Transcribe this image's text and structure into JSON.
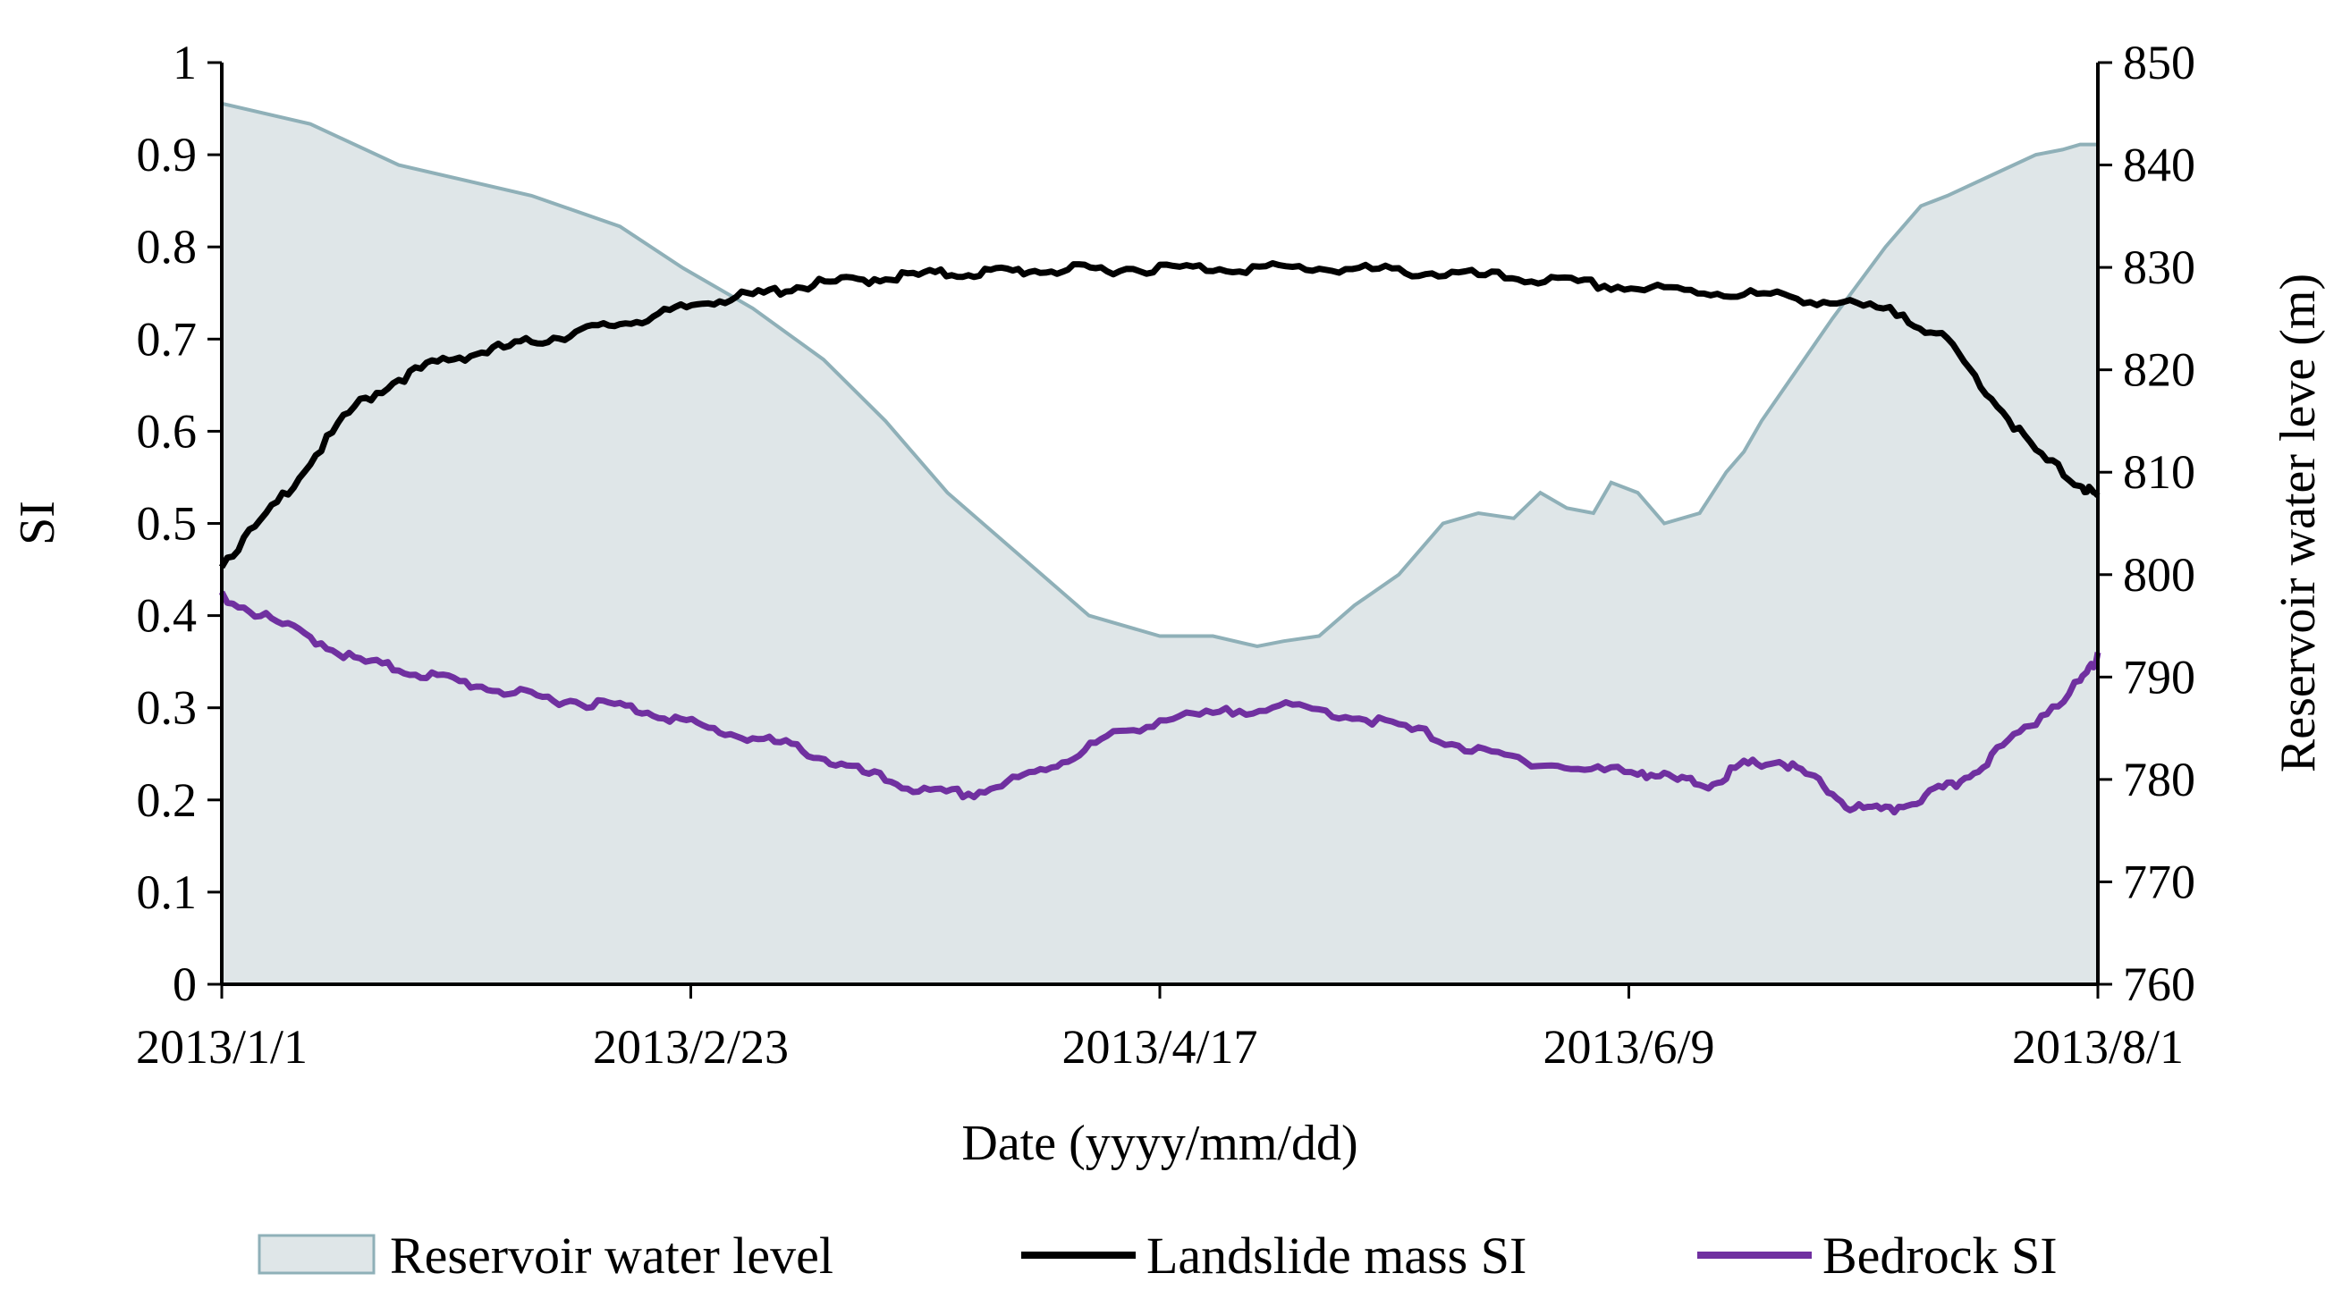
{
  "chart_data": {
    "type": "line",
    "title": "",
    "xlabel": "Date (yyyy/mm/dd)",
    "ylabel": "SI",
    "y2label": "Reservoir water leve (m)",
    "x_tick_labels": [
      "2013/1/1",
      "2013/2/23",
      "2013/4/17",
      "2013/6/9",
      "2013/8/1"
    ],
    "x_tick_days": [
      0,
      53,
      106,
      159,
      212
    ],
    "xlim": [
      0,
      212
    ],
    "ylim": [
      0,
      1
    ],
    "y_ticks": [
      "0",
      "0.1",
      "0.2",
      "0.3",
      "0.4",
      "0.5",
      "0.6",
      "0.7",
      "0.8",
      "0.9",
      "1"
    ],
    "y2lim": [
      760,
      850
    ],
    "y2_ticks": [
      "760",
      "770",
      "780",
      "790",
      "800",
      "810",
      "820",
      "830",
      "840",
      "850"
    ],
    "legend_position": "bottom",
    "series": [
      {
        "name": "Reservoir water level",
        "kind": "area",
        "axis": "right",
        "color": "#dfe6e8",
        "stroke": "#8fb0b8",
        "x": [
          0,
          10,
          20,
          35,
          45,
          52,
          60,
          68,
          75,
          82,
          90,
          98,
          106,
          112,
          117,
          120,
          124,
          128,
          133,
          138,
          142,
          146,
          149,
          152,
          155,
          157,
          160,
          163,
          167,
          170,
          172,
          174,
          178,
          182,
          188,
          190,
          192,
          195,
          200,
          205,
          208,
          210,
          212
        ],
        "values": [
          846,
          844,
          840,
          837,
          834,
          830,
          826,
          821,
          815,
          808,
          802,
          796,
          794,
          794,
          793,
          793.5,
          794,
          797,
          800,
          805,
          806,
          805.5,
          808,
          806.5,
          806,
          809,
          808,
          805,
          806,
          810,
          812,
          815,
          820,
          825,
          832,
          834,
          836,
          837,
          839,
          841,
          841.5,
          842,
          842
        ]
      },
      {
        "name": "Landslide mass SI",
        "kind": "line",
        "axis": "left",
        "color": "#000000",
        "x": [
          0,
          5,
          10,
          15,
          20,
          25,
          30,
          35,
          40,
          45,
          50,
          55,
          60,
          65,
          70,
          75,
          80,
          85,
          90,
          95,
          100,
          106,
          112,
          118,
          124,
          130,
          136,
          142,
          148,
          154,
          160,
          166,
          172,
          178,
          184,
          190,
          195,
          200,
          205,
          210,
          212
        ],
        "values": [
          0.46,
          0.51,
          0.57,
          0.63,
          0.66,
          0.68,
          0.69,
          0.7,
          0.71,
          0.72,
          0.73,
          0.745,
          0.75,
          0.76,
          0.765,
          0.77,
          0.773,
          0.775,
          0.777,
          0.778,
          0.779,
          0.78,
          0.78,
          0.78,
          0.78,
          0.778,
          0.775,
          0.772,
          0.768,
          0.763,
          0.758,
          0.755,
          0.752,
          0.748,
          0.74,
          0.73,
          0.7,
          0.64,
          0.58,
          0.545,
          0.53
        ]
      },
      {
        "name": "Bedrock SI",
        "kind": "line",
        "axis": "left",
        "color": "#7030a0",
        "x": [
          0,
          5,
          10,
          15,
          20,
          25,
          30,
          35,
          40,
          45,
          50,
          55,
          60,
          65,
          70,
          75,
          80,
          85,
          90,
          95,
          100,
          106,
          112,
          118,
          124,
          130,
          136,
          142,
          148,
          154,
          160,
          164,
          168,
          172,
          176,
          180,
          184,
          188,
          192,
          196,
          200,
          205,
          210,
          212
        ],
        "values": [
          0.425,
          0.4,
          0.38,
          0.355,
          0.345,
          0.335,
          0.325,
          0.315,
          0.31,
          0.305,
          0.295,
          0.28,
          0.27,
          0.26,
          0.24,
          0.225,
          0.21,
          0.21,
          0.225,
          0.245,
          0.27,
          0.29,
          0.295,
          0.305,
          0.3,
          0.29,
          0.275,
          0.255,
          0.245,
          0.235,
          0.235,
          0.225,
          0.22,
          0.24,
          0.245,
          0.225,
          0.195,
          0.19,
          0.205,
          0.22,
          0.25,
          0.29,
          0.33,
          0.36
        ]
      }
    ]
  }
}
